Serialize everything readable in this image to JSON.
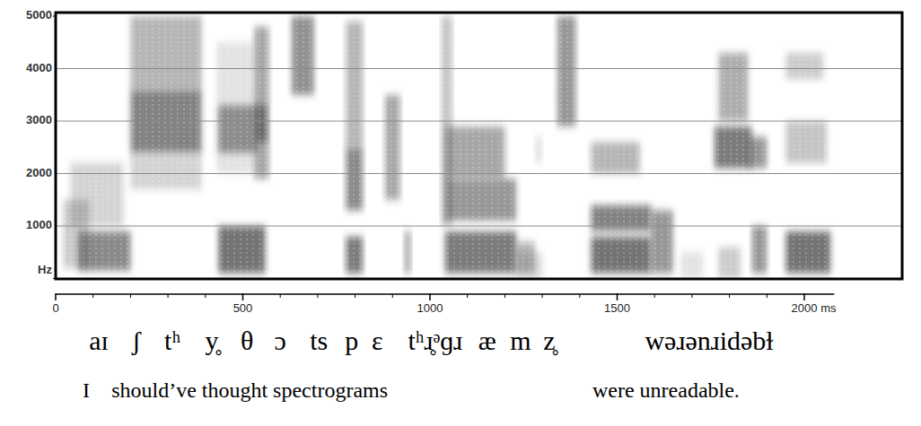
{
  "chart_data": {
    "type": "spectrogram",
    "xlim": [
      0,
      2080
    ],
    "ylim": [
      0,
      5000
    ],
    "xticks": [
      0,
      500,
      1000,
      1500,
      {
        "value": 2000,
        "label": "2000 ms"
      }
    ],
    "xminor_ticks": [
      100,
      200,
      300,
      400,
      600,
      700,
      800,
      900,
      1100,
      1200,
      1300,
      1400,
      1600,
      1700,
      1800,
      1900
    ],
    "yticks": [
      {
        "value": 0,
        "label": "Hz"
      },
      1000,
      2000,
      3000,
      4000,
      5000
    ],
    "grid": true,
    "energy": [
      {
        "t0": 20,
        "t1": 90,
        "f0": 200,
        "f1": 1500,
        "intensity": 0.35
      },
      {
        "t0": 60,
        "t1": 200,
        "f0": 150,
        "f1": 900,
        "intensity": 0.8
      },
      {
        "t0": 40,
        "t1": 180,
        "f0": 1000,
        "f1": 2200,
        "intensity": 0.3
      },
      {
        "t0": 200,
        "t1": 390,
        "f0": 2400,
        "f1": 3600,
        "intensity": 0.85
      },
      {
        "t0": 200,
        "t1": 390,
        "f0": 3600,
        "f1": 5000,
        "intensity": 0.5
      },
      {
        "t0": 200,
        "t1": 390,
        "f0": 1700,
        "f1": 2400,
        "intensity": 0.3
      },
      {
        "t0": 530,
        "t1": 570,
        "f0": 1900,
        "f1": 4800,
        "intensity": 0.6
      },
      {
        "t0": 535,
        "t1": 565,
        "f0": 2600,
        "f1": 3300,
        "intensity": 0.8
      },
      {
        "t0": 430,
        "t1": 530,
        "f0": 2000,
        "f1": 4500,
        "intensity": 0.2
      },
      {
        "t0": 435,
        "t1": 560,
        "f0": 100,
        "f1": 1000,
        "intensity": 0.95
      },
      {
        "t0": 435,
        "t1": 540,
        "f0": 2400,
        "f1": 3300,
        "intensity": 0.7
      },
      {
        "t0": 630,
        "t1": 690,
        "f0": 3500,
        "f1": 5000,
        "intensity": 0.75
      },
      {
        "t0": 775,
        "t1": 820,
        "f0": 1300,
        "f1": 2500,
        "intensity": 0.8
      },
      {
        "t0": 775,
        "t1": 820,
        "f0": 100,
        "f1": 800,
        "intensity": 0.9
      },
      {
        "t0": 775,
        "t1": 820,
        "f0": 2500,
        "f1": 4900,
        "intensity": 0.5
      },
      {
        "t0": 880,
        "t1": 920,
        "f0": 1500,
        "f1": 3500,
        "intensity": 0.6
      },
      {
        "t0": 930,
        "t1": 950,
        "f0": 100,
        "f1": 900,
        "intensity": 0.5
      },
      {
        "t0": 1030,
        "t1": 1060,
        "f0": 1000,
        "f1": 5000,
        "intensity": 0.4
      },
      {
        "t0": 1040,
        "t1": 1230,
        "f0": 100,
        "f1": 900,
        "intensity": 0.9
      },
      {
        "t0": 1040,
        "t1": 1230,
        "f0": 1100,
        "f1": 1900,
        "intensity": 0.7
      },
      {
        "t0": 1040,
        "t1": 1200,
        "f0": 1900,
        "f1": 2900,
        "intensity": 0.6
      },
      {
        "t0": 1230,
        "t1": 1280,
        "f0": 100,
        "f1": 700,
        "intensity": 0.5
      },
      {
        "t0": 1230,
        "t1": 1300,
        "f0": 0,
        "f1": 500,
        "intensity": 0.25
      },
      {
        "t0": 1280,
        "t1": 1300,
        "f0": 2200,
        "f1": 2700,
        "intensity": 0.2
      },
      {
        "t0": 1340,
        "t1": 1390,
        "f0": 2900,
        "f1": 5000,
        "intensity": 0.7
      },
      {
        "t0": 1430,
        "t1": 1590,
        "f0": 100,
        "f1": 800,
        "intensity": 0.95
      },
      {
        "t0": 1430,
        "t1": 1590,
        "f0": 900,
        "f1": 1400,
        "intensity": 0.85
      },
      {
        "t0": 1430,
        "t1": 1560,
        "f0": 2000,
        "f1": 2600,
        "intensity": 0.5
      },
      {
        "t0": 1590,
        "t1": 1650,
        "f0": 100,
        "f1": 1300,
        "intensity": 0.7
      },
      {
        "t0": 1670,
        "t1": 1730,
        "f0": 0,
        "f1": 500,
        "intensity": 0.2
      },
      {
        "t0": 1760,
        "t1": 1860,
        "f0": 2100,
        "f1": 2900,
        "intensity": 0.9
      },
      {
        "t0": 1770,
        "t1": 1850,
        "f0": 3000,
        "f1": 4300,
        "intensity": 0.55
      },
      {
        "t0": 1770,
        "t1": 1830,
        "f0": 0,
        "f1": 600,
        "intensity": 0.35
      },
      {
        "t0": 1850,
        "t1": 1900,
        "f0": 2100,
        "f1": 2700,
        "intensity": 0.7
      },
      {
        "t0": 1860,
        "t1": 1900,
        "f0": 100,
        "f1": 1000,
        "intensity": 0.7
      },
      {
        "t0": 1950,
        "t1": 2070,
        "f0": 100,
        "f1": 900,
        "intensity": 0.95
      },
      {
        "t0": 1950,
        "t1": 2060,
        "f0": 2200,
        "f1": 3000,
        "intensity": 0.4
      },
      {
        "t0": 1950,
        "t1": 2050,
        "f0": 3800,
        "f1": 4300,
        "intensity": 0.35
      }
    ],
    "transcription": [
      {
        "text": "aɪ",
        "time": 115
      },
      {
        "text": "ʃ",
        "time": 216
      },
      {
        "text": "tʰ",
        "time": 312
      },
      {
        "text": "y̥",
        "time": 417
      },
      {
        "text": "θ",
        "time": 511
      },
      {
        "text": "ɔ",
        "time": 600
      },
      {
        "text": "ts",
        "time": 703
      },
      {
        "text": "p",
        "time": 791
      },
      {
        "text": "ɛ",
        "time": 859
      },
      {
        "text": "tʰɹ̥ᵊɡɹ",
        "time": 1014
      },
      {
        "text": "æ",
        "time": 1153
      },
      {
        "text": "m",
        "time": 1242
      },
      {
        "text": "z̥",
        "time": 1319
      },
      {
        "text": "wəɹənɹidəbɫ",
        "time": 1746
      }
    ],
    "gloss": [
      {
        "text": "I",
        "time": 72
      },
      {
        "text": "should’ve thought spectrograms",
        "time": 149
      },
      {
        "text": "were unreadable.",
        "time": 1434
      }
    ]
  }
}
